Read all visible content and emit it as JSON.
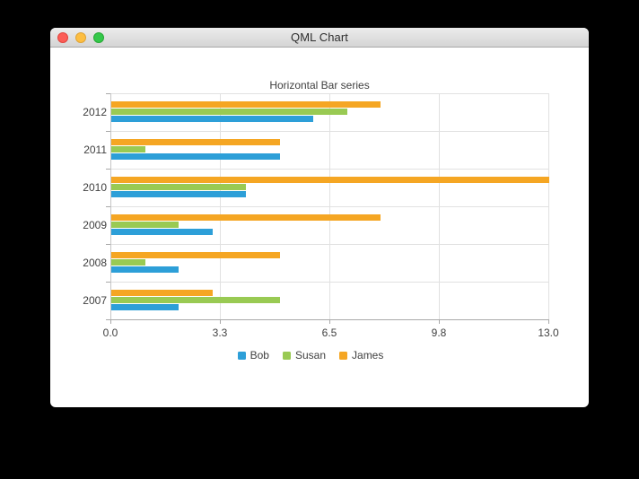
{
  "window": {
    "title": "QML Chart",
    "controls": [
      {
        "name": "close-button",
        "color": "#fc5d57",
        "border": "#e2443d"
      },
      {
        "name": "minimize-button",
        "color": "#fdbe41",
        "border": "#dfa335"
      },
      {
        "name": "zoom-button",
        "color": "#34c84a",
        "border": "#26a734"
      }
    ]
  },
  "chart_data": {
    "type": "bar",
    "orientation": "horizontal",
    "title": "Horizontal Bar series",
    "categories": [
      "2007",
      "2008",
      "2009",
      "2010",
      "2011",
      "2012"
    ],
    "categories_bottom_to_top": true,
    "series": [
      {
        "name": "Bob",
        "color": "#2d9fd8",
        "values": [
          2,
          2,
          3,
          4,
          5,
          6
        ]
      },
      {
        "name": "Susan",
        "color": "#99ca53",
        "values": [
          5,
          1,
          2,
          4,
          1,
          7
        ]
      },
      {
        "name": "James",
        "color": "#f5a623",
        "values": [
          3,
          5,
          8,
          13,
          5,
          8
        ]
      }
    ],
    "x_axis": {
      "min": 0,
      "max": 13,
      "tick_labels": [
        "0.0",
        "3.3",
        "6.5",
        "9.8",
        "13.0"
      ]
    },
    "legend_position": "bottom",
    "grid": true
  },
  "colors": {
    "background": "#000000",
    "window_bg": "#ffffff",
    "gridline": "#e1e1e1",
    "axis_line": "#a9a9a9",
    "axis_text": "#404040"
  }
}
